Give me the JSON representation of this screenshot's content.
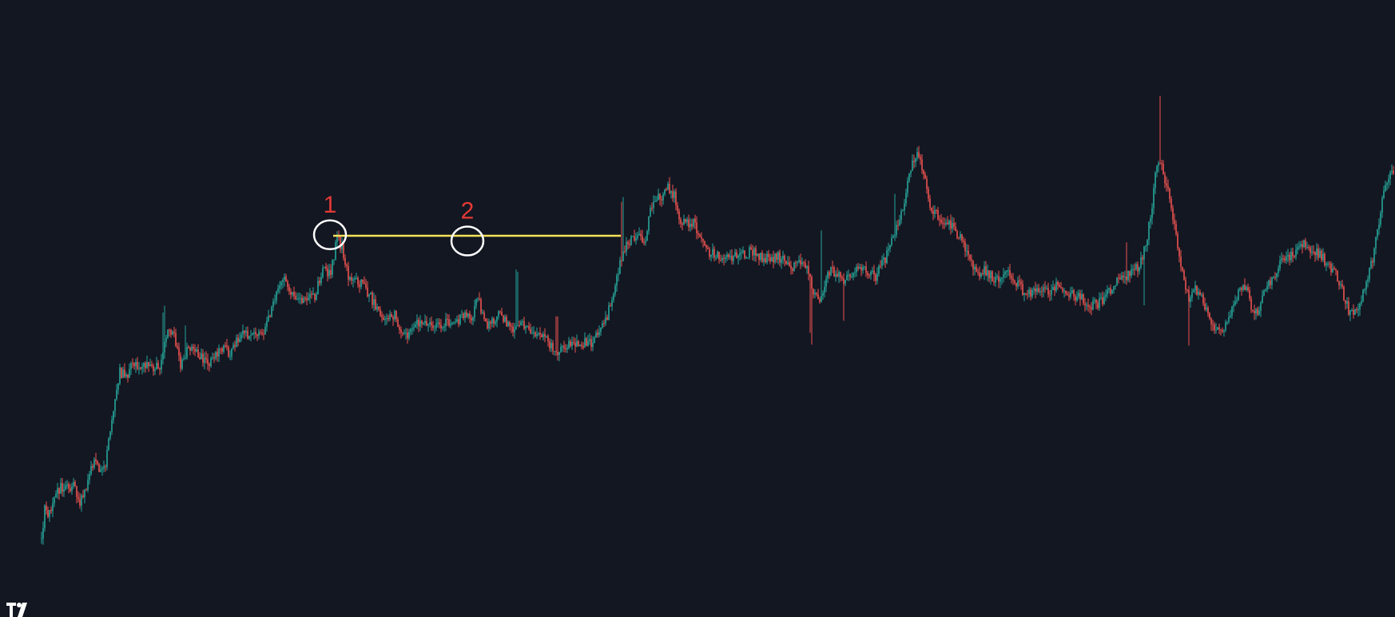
{
  "chart_data": {
    "type": "candlestick",
    "title": "",
    "xlabel": "",
    "ylabel": "",
    "grid": false,
    "x_range": [
      0,
      1746
    ],
    "y_range": [
      0,
      100
    ],
    "up_color": "#26a69a",
    "down_color": "#ef5350",
    "background": "#131722",
    "path": [
      [
        52,
        3
      ],
      [
        56,
        9
      ],
      [
        62,
        8
      ],
      [
        70,
        13
      ],
      [
        80,
        14
      ],
      [
        92,
        14
      ],
      [
        100,
        11
      ],
      [
        110,
        15
      ],
      [
        118,
        20
      ],
      [
        126,
        17
      ],
      [
        132,
        19
      ],
      [
        140,
        27
      ],
      [
        150,
        38
      ],
      [
        158,
        37
      ],
      [
        168,
        40
      ],
      [
        178,
        39
      ],
      [
        188,
        39
      ],
      [
        200,
        39
      ],
      [
        208,
        46
      ],
      [
        218,
        46
      ],
      [
        226,
        39
      ],
      [
        236,
        43
      ],
      [
        244,
        43
      ],
      [
        256,
        40
      ],
      [
        266,
        40
      ],
      [
        276,
        43
      ],
      [
        288,
        42
      ],
      [
        298,
        45
      ],
      [
        308,
        46
      ],
      [
        320,
        46
      ],
      [
        330,
        46
      ],
      [
        340,
        51
      ],
      [
        346,
        55
      ],
      [
        356,
        58
      ],
      [
        364,
        55
      ],
      [
        372,
        53
      ],
      [
        382,
        53
      ],
      [
        394,
        54
      ],
      [
        404,
        59
      ],
      [
        414,
        59
      ],
      [
        422,
        66
      ],
      [
        428,
        64
      ],
      [
        436,
        58
      ],
      [
        446,
        57
      ],
      [
        456,
        56
      ],
      [
        466,
        53
      ],
      [
        476,
        50
      ],
      [
        486,
        49
      ],
      [
        494,
        50
      ],
      [
        504,
        46
      ],
      [
        512,
        46
      ],
      [
        520,
        48
      ],
      [
        530,
        49
      ],
      [
        540,
        47
      ],
      [
        550,
        48
      ],
      [
        560,
        48
      ],
      [
        570,
        48
      ],
      [
        580,
        50
      ],
      [
        590,
        49
      ],
      [
        598,
        54
      ],
      [
        606,
        48
      ],
      [
        614,
        48
      ],
      [
        622,
        50
      ],
      [
        632,
        49
      ],
      [
        642,
        47
      ],
      [
        652,
        49
      ],
      [
        660,
        47
      ],
      [
        670,
        45
      ],
      [
        680,
        46
      ],
      [
        690,
        43
      ],
      [
        700,
        42
      ],
      [
        710,
        44
      ],
      [
        720,
        44
      ],
      [
        730,
        44
      ],
      [
        740,
        44
      ],
      [
        750,
        46
      ],
      [
        760,
        50
      ],
      [
        768,
        55
      ],
      [
        776,
        61
      ],
      [
        784,
        65
      ],
      [
        792,
        66
      ],
      [
        800,
        66
      ],
      [
        808,
        66
      ],
      [
        814,
        72
      ],
      [
        822,
        75
      ],
      [
        830,
        75
      ],
      [
        836,
        77
      ],
      [
        844,
        75
      ],
      [
        852,
        69
      ],
      [
        860,
        69
      ],
      [
        868,
        69
      ],
      [
        876,
        66
      ],
      [
        886,
        63
      ],
      [
        896,
        63
      ],
      [
        906,
        62
      ],
      [
        916,
        62
      ],
      [
        926,
        62
      ],
      [
        936,
        63
      ],
      [
        944,
        63
      ],
      [
        954,
        62
      ],
      [
        964,
        62
      ],
      [
        974,
        62
      ],
      [
        984,
        61
      ],
      [
        994,
        60
      ],
      [
        1004,
        61
      ],
      [
        1012,
        59
      ],
      [
        1018,
        55
      ],
      [
        1024,
        53
      ],
      [
        1030,
        55
      ],
      [
        1036,
        59
      ],
      [
        1046,
        59
      ],
      [
        1056,
        57
      ],
      [
        1066,
        58
      ],
      [
        1076,
        60
      ],
      [
        1086,
        59
      ],
      [
        1096,
        58
      ],
      [
        1106,
        61
      ],
      [
        1116,
        65
      ],
      [
        1124,
        69
      ],
      [
        1132,
        73
      ],
      [
        1140,
        81
      ],
      [
        1148,
        84
      ],
      [
        1156,
        79
      ],
      [
        1164,
        73
      ],
      [
        1172,
        71
      ],
      [
        1180,
        69
      ],
      [
        1190,
        69
      ],
      [
        1198,
        67
      ],
      [
        1206,
        65
      ],
      [
        1214,
        62
      ],
      [
        1222,
        59
      ],
      [
        1232,
        59
      ],
      [
        1242,
        58
      ],
      [
        1252,
        57
      ],
      [
        1262,
        59
      ],
      [
        1270,
        57
      ],
      [
        1280,
        55
      ],
      [
        1290,
        54
      ],
      [
        1298,
        55
      ],
      [
        1306,
        56
      ],
      [
        1314,
        55
      ],
      [
        1322,
        56
      ],
      [
        1332,
        55
      ],
      [
        1342,
        54
      ],
      [
        1352,
        54
      ],
      [
        1362,
        52
      ],
      [
        1372,
        52
      ],
      [
        1380,
        53
      ],
      [
        1390,
        55
      ],
      [
        1398,
        57
      ],
      [
        1406,
        58
      ],
      [
        1412,
        58
      ],
      [
        1420,
        59
      ],
      [
        1428,
        61
      ],
      [
        1434,
        65
      ],
      [
        1440,
        70
      ],
      [
        1448,
        82
      ],
      [
        1456,
        80
      ],
      [
        1464,
        74
      ],
      [
        1472,
        66
      ],
      [
        1480,
        59
      ],
      [
        1488,
        53
      ],
      [
        1496,
        55
      ],
      [
        1504,
        54
      ],
      [
        1512,
        50
      ],
      [
        1520,
        47
      ],
      [
        1528,
        46
      ],
      [
        1536,
        48
      ],
      [
        1544,
        52
      ],
      [
        1552,
        55
      ],
      [
        1560,
        56
      ],
      [
        1568,
        50
      ],
      [
        1576,
        51
      ],
      [
        1584,
        56
      ],
      [
        1592,
        57
      ],
      [
        1600,
        60
      ],
      [
        1610,
        62
      ],
      [
        1620,
        63
      ],
      [
        1630,
        65
      ],
      [
        1640,
        64
      ],
      [
        1650,
        63
      ],
      [
        1660,
        61
      ],
      [
        1670,
        59
      ],
      [
        1680,
        55
      ],
      [
        1690,
        50
      ],
      [
        1700,
        52
      ],
      [
        1710,
        56
      ],
      [
        1720,
        63
      ],
      [
        1728,
        72
      ],
      [
        1736,
        78
      ],
      [
        1746,
        80
      ]
    ],
    "spikes": [
      [
        205,
        15
      ],
      [
        232,
        12
      ],
      [
        647,
        22
      ],
      [
        697,
        14
      ],
      [
        779,
        22
      ],
      [
        1015,
        22
      ],
      [
        1028,
        26
      ],
      [
        1056,
        14
      ],
      [
        1120,
        16
      ],
      [
        1410,
        14
      ],
      [
        1432,
        18
      ],
      [
        1452,
        28
      ],
      [
        1488,
        18
      ]
    ],
    "annotations": {
      "resistance_line": {
        "y": 66.5,
        "x_start": 417,
        "x_end": 777,
        "color": "#f5e15a"
      },
      "markers": [
        {
          "label": "1",
          "cx": 413,
          "cy": 66.7,
          "color": "#e53935"
        },
        {
          "label": "2",
          "cx": 585,
          "cy": 65.4,
          "color": "#e53935"
        }
      ]
    }
  },
  "logo": {
    "icon": "tradingview-logo-icon",
    "color": "#ffffff"
  }
}
